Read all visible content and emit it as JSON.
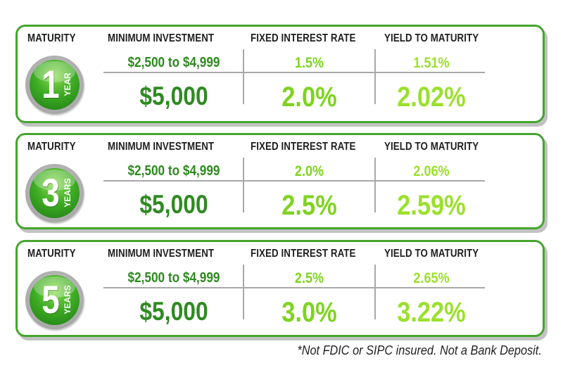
{
  "headers": {
    "maturity": "MATURITY",
    "minimum_investment": "MINIMUM INVESTMENT",
    "fixed_interest_rate": "FIXED INTEREST RATE",
    "yield_to_maturity": "YIELD TO MATURITY"
  },
  "tiers": [
    {
      "badge_number": "1",
      "badge_unit": "YEAR",
      "min_low": "$2,500 to $4,999",
      "min_high": "$5,000",
      "rate_low": "1.5%",
      "rate_high": "2.0%",
      "yield_low": "1.51%",
      "yield_high": "2.02%"
    },
    {
      "badge_number": "3",
      "badge_unit": "YEARS",
      "min_low": "$2,500 to $4,999",
      "min_high": "$5,000",
      "rate_low": "2.0%",
      "rate_high": "2.5%",
      "yield_low": "2.06%",
      "yield_high": "2.59%"
    },
    {
      "badge_number": "5",
      "badge_unit": "YEARS",
      "min_low": "$2,500 to $4,999",
      "min_high": "$5,000",
      "rate_low": "2.5%",
      "rate_high": "3.0%",
      "yield_low": "2.65%",
      "yield_high": "3.22%"
    }
  ],
  "footnote": "*Not FDIC or SIPC insured. Not a Bank Deposit.",
  "colors": {
    "border_green": "#45a52e",
    "min_green": "#2f8a22",
    "rate_green": "#7ed321",
    "yield_green": "#9be02d"
  }
}
